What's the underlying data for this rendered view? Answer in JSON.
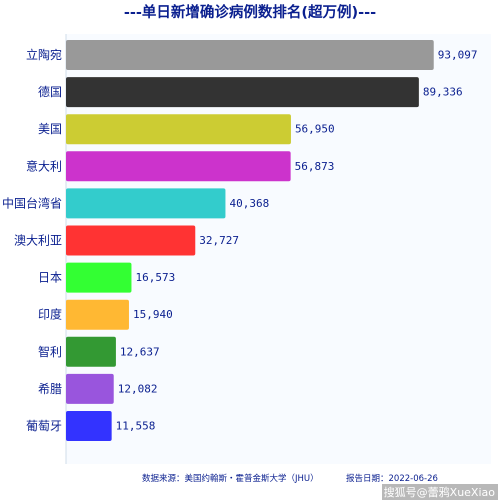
{
  "chart_data": {
    "type": "bar",
    "orientation": "horizontal",
    "title": "---单日新增确诊病例数排名(超万例)---",
    "categories": [
      "立陶宛",
      "德国",
      "美国",
      "意大利",
      "中国台湾省",
      "澳大利亚",
      "日本",
      "印度",
      "智利",
      "希腊",
      "葡萄牙"
    ],
    "values": [
      93097,
      89336,
      56950,
      56873,
      40368,
      32727,
      16573,
      15940,
      12637,
      12082,
      11558
    ],
    "value_labels": [
      "93,097",
      "89,336",
      "56,950",
      "56,873",
      "40,368",
      "32,727",
      "16,573",
      "15,940",
      "12,637",
      "12,082",
      "11,558"
    ],
    "colors": [
      "#999999",
      "#333333",
      "#cccc33",
      "#cc33cc",
      "#33cccc",
      "#ff3333",
      "#33ff33",
      "#ffb833",
      "#339933",
      "#9955dd",
      "#3333ff"
    ],
    "xlim": [
      0,
      100000
    ],
    "grid": false,
    "legend": "none"
  },
  "footer": {
    "source": "数据来源：美国约翰斯・霍普金斯大学（JHU）",
    "date": "报告日期：2022-06-26"
  },
  "watermark": "搜狐号@蕾鸦XueXiao"
}
